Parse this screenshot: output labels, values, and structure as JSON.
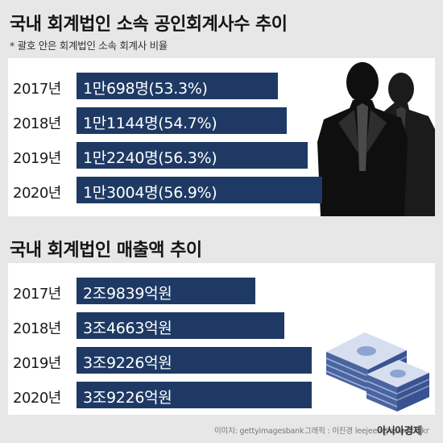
{
  "chart_data": [
    {
      "type": "bar",
      "orientation": "horizontal",
      "title": "국내 회계법인 소속 공인회계사수 추이",
      "note": "* 괄호 안은 회계법인 소속 회계사 비율",
      "categories": [
        "2017년",
        "2018년",
        "2019년",
        "2020년"
      ],
      "values": [
        10698,
        11144,
        12240,
        13004
      ],
      "percent": [
        53.3,
        54.7,
        56.3,
        56.9
      ],
      "value_labels": [
        "1만698명",
        "1만1144명",
        "1만2240명",
        "1만3004명"
      ],
      "pct_labels": [
        "(53.3%)",
        "(54.7%)",
        "(56.3%)",
        "(56.9%)"
      ],
      "color": "#1e3a64"
    },
    {
      "type": "bar",
      "orientation": "horizontal",
      "title": "국내 회계법인 매출액 추이",
      "categories": [
        "2017년",
        "2018년",
        "2019년",
        "2020년"
      ],
      "values": [
        29839,
        34663,
        39226,
        39226
      ],
      "value_labels": [
        "2조9839억원",
        "3조4663억원",
        "3조9226억원",
        "3조9226억원"
      ],
      "color": "#1e3a64"
    }
  ],
  "footer": {
    "image_credit": "이미지: gettyimagesbank",
    "graphic_credit": "그래픽 : 이진경 leejeen@asiae.co.kr",
    "brand": "아시아경제"
  },
  "icons": [
    "businessmen-silhouette-icon",
    "money-stack-icon"
  ]
}
